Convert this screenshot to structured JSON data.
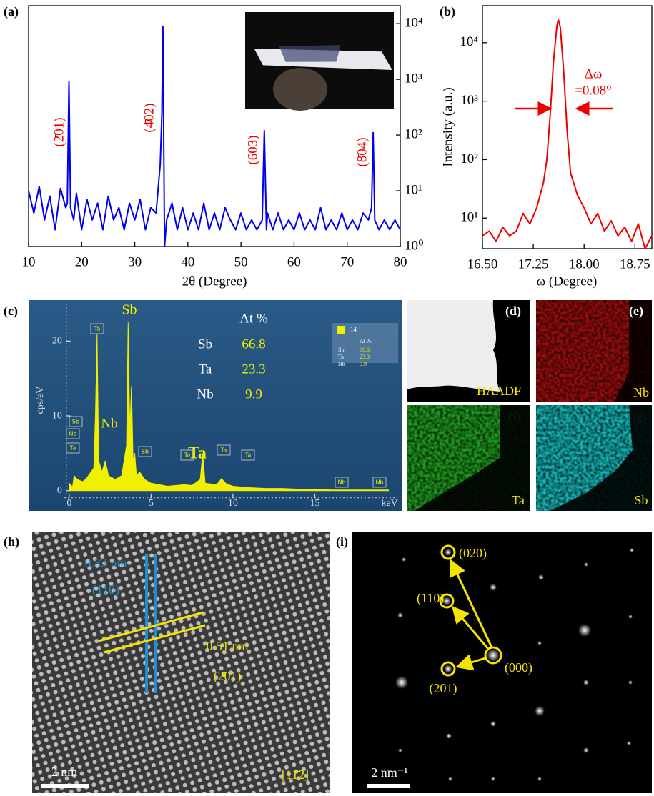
{
  "chart_data": [
    {
      "type": "line",
      "panel_label": "(a)",
      "xlabel": "2θ (Degree)",
      "color": "#0000ee",
      "ylog": true,
      "x": [
        10,
        11,
        12,
        13,
        14,
        15,
        16,
        17,
        17.3,
        17.6,
        17.9,
        18.5,
        19,
        20,
        21,
        22,
        23,
        24,
        25,
        26,
        27,
        28,
        29,
        30,
        31,
        32,
        33,
        34,
        34.8,
        35.1,
        35.3,
        35.6,
        36,
        37,
        38,
        39,
        40,
        41,
        42,
        43,
        44,
        45,
        46,
        47,
        48,
        49,
        50,
        51,
        52,
        53,
        54,
        54.4,
        54.8,
        55,
        56,
        57,
        58,
        59,
        60,
        61,
        62,
        63,
        64,
        65,
        66,
        67,
        68,
        69,
        70,
        71,
        72,
        73,
        74,
        74.6,
        74.9,
        75.2,
        76,
        77,
        78,
        79,
        80
      ],
      "values": [
        10,
        4,
        12,
        3,
        8,
        2,
        11,
        5,
        6,
        900,
        5,
        3,
        9,
        2,
        7,
        3,
        6,
        2,
        8,
        3,
        5,
        2,
        6,
        3,
        7,
        2,
        5,
        4,
        30,
        250,
        9000,
        1,
        3,
        6,
        2,
        5,
        2,
        4,
        2,
        6,
        2,
        4,
        2,
        5,
        3,
        2,
        4,
        2,
        3,
        2,
        3,
        120,
        2,
        4,
        2,
        4,
        2,
        3,
        2,
        4,
        2,
        3,
        2,
        5,
        2,
        3,
        2,
        4,
        2,
        3,
        2,
        4,
        3,
        5,
        110,
        3,
        2,
        3,
        2,
        3,
        2
      ],
      "xlim": [
        10,
        80
      ],
      "ylim": [
        1,
        21000
      ],
      "xticks": [
        10,
        20,
        30,
        40,
        50,
        60,
        70,
        80
      ],
      "yticks": [
        {
          "value": 1,
          "label": "10⁰"
        },
        {
          "value": 10,
          "label": "10¹"
        },
        {
          "value": 100,
          "label": "10²"
        },
        {
          "value": 1000,
          "label": "10³"
        },
        {
          "value": 10000,
          "label": "10⁴"
        }
      ],
      "annotations": [
        "(2̄01)",
        "(4̄02)",
        "(6̄03)",
        "(8̄04)"
      ]
    },
    {
      "type": "line",
      "panel_label": "(b)",
      "xlabel": "ω (Degree)",
      "ylabel": "Intensity (a.u.)",
      "color": "#ee0000",
      "ylog": true,
      "x": [
        16.5,
        16.6,
        16.7,
        16.8,
        16.9,
        17.0,
        17.1,
        17.2,
        17.3,
        17.4,
        17.45,
        17.5,
        17.55,
        17.6,
        17.62,
        17.65,
        17.7,
        17.75,
        17.8,
        17.9,
        18.0,
        18.1,
        18.2,
        18.3,
        18.4,
        18.5,
        18.6,
        18.7,
        18.8,
        18.9,
        19.0
      ],
      "values": [
        5,
        6,
        4,
        7,
        5,
        6,
        12,
        8,
        15,
        40,
        100,
        600,
        5000,
        20000,
        25000,
        18000,
        3000,
        300,
        60,
        25,
        15,
        8,
        12,
        6,
        9,
        5,
        7,
        4,
        8,
        3,
        5
      ],
      "xlim": [
        16.5,
        19.0
      ],
      "ylim": [
        3,
        43000
      ],
      "xticks": [
        {
          "value": 16.5,
          "label": "16.50"
        },
        {
          "value": 17.25,
          "label": "17.25"
        },
        {
          "value": 18,
          "label": "18.00"
        },
        {
          "value": 18.75,
          "label": "18.75"
        }
      ],
      "yticks": [
        {
          "value": 10,
          "label": "10¹"
        },
        {
          "value": 100,
          "label": "10²"
        },
        {
          "value": 1000,
          "label": "10³"
        },
        {
          "value": 10000,
          "label": "10⁴"
        }
      ],
      "annotations": [
        "Δω",
        "=0.08°"
      ]
    },
    {
      "type": "area",
      "panel_label": "(c)",
      "xlabel": "keV",
      "ylabel": "cps/eV",
      "color": "#f0f000",
      "x": [
        0,
        0.2,
        0.3,
        0.5,
        0.8,
        1.0,
        1.5,
        1.6,
        1.7,
        1.8,
        2.0,
        2.2,
        2.4,
        2.8,
        3.2,
        3.5,
        3.6,
        3.7,
        3.8,
        3.9,
        4.0,
        4.1,
        4.3,
        4.6,
        5,
        6,
        7,
        7.5,
        8.0,
        8.15,
        8.3,
        9,
        9.3,
        9.6,
        10,
        11,
        12,
        13,
        14,
        15,
        16,
        17,
        18,
        19,
        19.5
      ],
      "values": [
        1,
        0.5,
        2,
        1.5,
        1.2,
        1.5,
        3,
        10,
        21,
        4,
        2.5,
        4,
        2,
        1.5,
        2,
        6,
        22.5,
        8,
        14,
        4,
        5,
        2,
        2.5,
        1.5,
        1,
        0.6,
        0.8,
        0.7,
        1.5,
        5,
        1,
        0.8,
        1.6,
        0.9,
        0.6,
        0.4,
        0.3,
        0.3,
        0.2,
        0.2,
        0.1,
        0.1,
        0.1,
        0.1,
        0.1
      ],
      "xlim": [
        -0.3,
        20
      ],
      "ylim": [
        -2.7,
        25
      ],
      "xticks": [
        0,
        5,
        10,
        15
      ],
      "yticks": [
        0,
        10,
        20
      ],
      "peak_labels": [
        "Sb",
        "Nb",
        "Ta"
      ],
      "tags": [
        "Sb",
        "Nb",
        "Ta",
        "Ta",
        "Sb",
        "Ta",
        "Ta",
        "Ta",
        "Nb",
        "Nb"
      ],
      "composition": {
        "header": "At %",
        "rows": [
          [
            "Sb",
            66.8
          ],
          [
            "Ta",
            23.3
          ],
          [
            "Nb",
            9.9
          ]
        ]
      },
      "inset_legend": {
        "label": "14",
        "header": "At %"
      }
    }
  ],
  "images": {
    "d": {
      "panel_label": "(d)",
      "label": "HAADF"
    },
    "e": {
      "panel_label": "(e)",
      "label": "Nb"
    },
    "f": {
      "panel_label": "(f)",
      "label": "Ta"
    },
    "g": {
      "panel_label": "(g)",
      "label": "Sb"
    },
    "h": {
      "panel_label": "(h)",
      "spacing_1": "0.32 nm",
      "plane_1": "(110)",
      "spacing_2": "0.51 nm",
      "plane_2": "(2̄01)",
      "zone_axis": "[11̄2]",
      "scale_bar": "2 nm"
    },
    "i": {
      "panel_label": "(i)",
      "spots": [
        "(020)",
        "(110)",
        "(000)",
        "(2̄01)"
      ],
      "scale_bar": "2 nm⁻¹"
    }
  }
}
